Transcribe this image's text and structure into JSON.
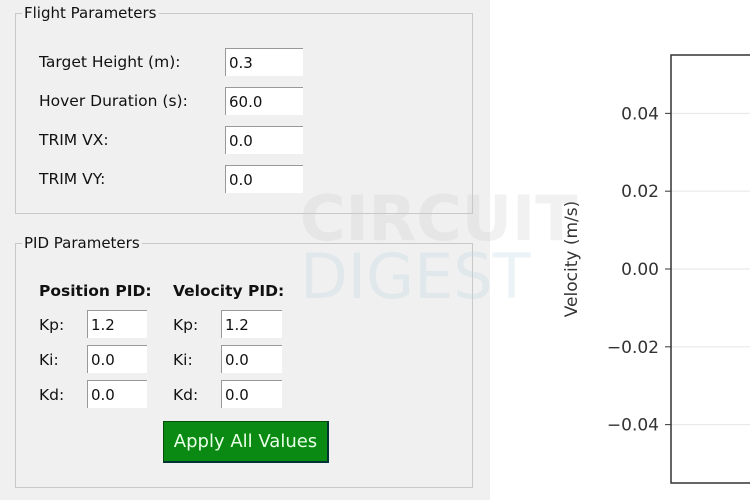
{
  "flight_parameters": {
    "title": "Flight Parameters",
    "fields": [
      {
        "label": "Target Height (m):",
        "value": "0.3"
      },
      {
        "label": "Hover Duration (s):",
        "value": "60.0"
      },
      {
        "label": "TRIM VX:",
        "value": "0.0"
      },
      {
        "label": "TRIM VY:",
        "value": "0.0"
      }
    ]
  },
  "pid_parameters": {
    "title": "PID Parameters",
    "position": {
      "header": "Position PID:",
      "rows": [
        {
          "label": "Kp:",
          "value": "1.2"
        },
        {
          "label": "Ki:",
          "value": "0.0"
        },
        {
          "label": "Kd:",
          "value": "0.0"
        }
      ]
    },
    "velocity": {
      "header": "Velocity PID:",
      "rows": [
        {
          "label": "Kp:",
          "value": "1.2"
        },
        {
          "label": "Ki:",
          "value": "0.0"
        },
        {
          "label": "Kd:",
          "value": "0.0"
        }
      ]
    },
    "apply_label": "Apply All Values",
    "apply_color": "#0a8a12"
  },
  "watermark": {
    "line1": "CIRCUIT",
    "line2": "DIGEST"
  },
  "chart_data": {
    "type": "line",
    "ylabel": "Velocity (m/s)",
    "yticks": [
      0.04,
      0.02,
      0.0,
      -0.02,
      -0.04
    ],
    "ytick_labels": [
      "0.04",
      "0.02",
      "0.00",
      "−0.02",
      "−0.04"
    ],
    "ylim": [
      -0.055,
      0.055
    ],
    "grid": true,
    "series": []
  }
}
